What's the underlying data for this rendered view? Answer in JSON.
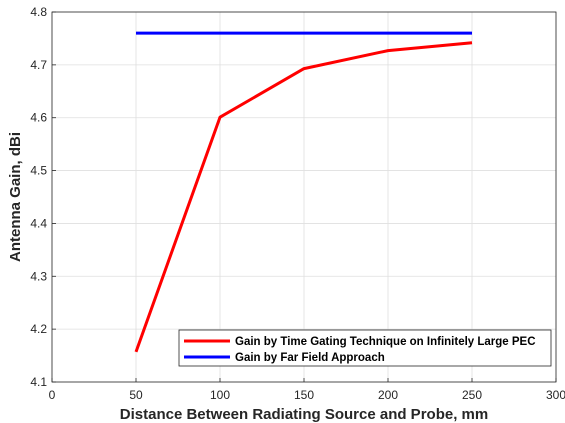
{
  "chart_data": {
    "type": "line",
    "title": "",
    "xlabel": "Distance Between Radiating Source and Probe, mm",
    "ylabel": "Antenna Gain, dBi",
    "xlim": [
      0,
      300
    ],
    "ylim": [
      4.1,
      4.8
    ],
    "x_ticks": [
      "0",
      "50",
      "100",
      "150",
      "200",
      "250",
      "300"
    ],
    "y_ticks": [
      "4.1",
      "4.2",
      "4.3",
      "4.4",
      "4.5",
      "4.6",
      "4.7",
      "4.8"
    ],
    "grid": true,
    "legend_position": "bottom-right",
    "series": [
      {
        "name": "Gain by Time Gating Technique on Infinitely Large PEC",
        "color": "#ff0000",
        "x": [
          50,
          100,
          150,
          200,
          250
        ],
        "y": [
          4.157,
          4.601,
          4.693,
          4.727,
          4.742
        ]
      },
      {
        "name": "Gain by Far Field Approach",
        "color": "#0000ff",
        "x": [
          50,
          250
        ],
        "y": [
          4.76,
          4.76
        ]
      }
    ]
  }
}
